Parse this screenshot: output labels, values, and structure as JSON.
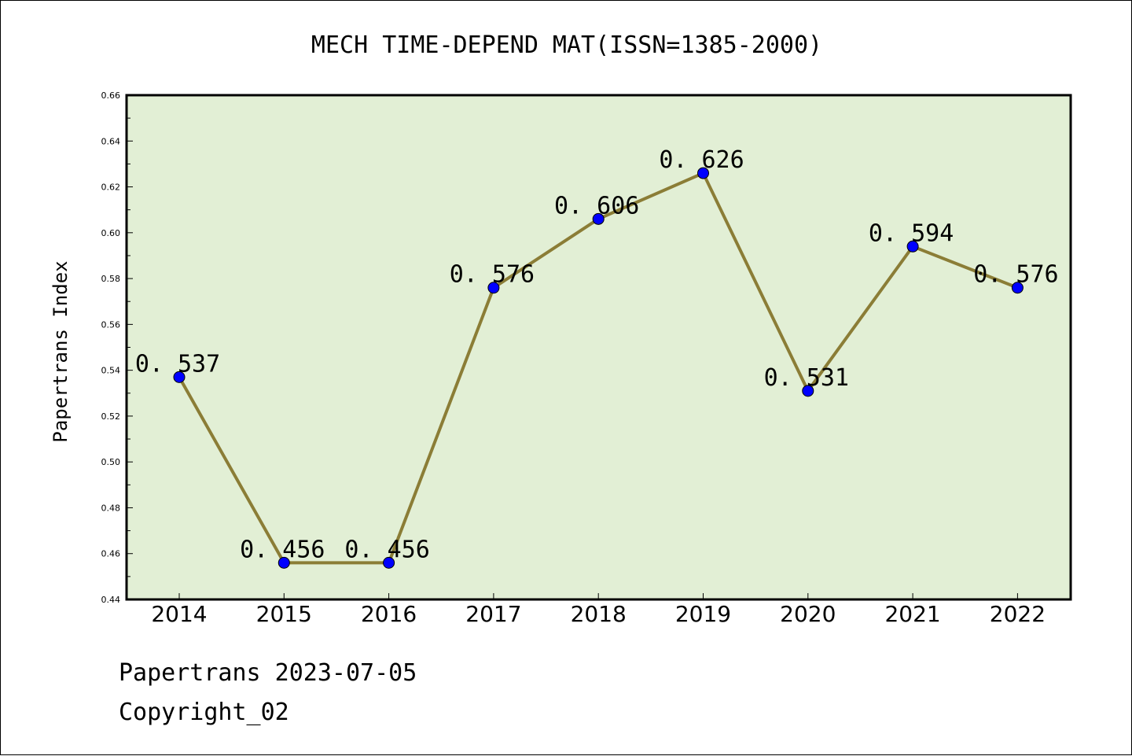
{
  "chart_data": {
    "type": "line",
    "title": "MECH TIME-DEPEND MAT(ISSN=1385-2000)",
    "xlabel": "",
    "ylabel": "Papertrans Index",
    "categories": [
      "2014",
      "2015",
      "2016",
      "2017",
      "2018",
      "2019",
      "2020",
      "2021",
      "2022"
    ],
    "series": [
      {
        "values": [
          0.537,
          0.456,
          0.456,
          0.576,
          0.606,
          0.626,
          0.531,
          0.594,
          0.576
        ]
      }
    ],
    "data_labels": [
      "0.537",
      "0.456",
      "0.456",
      "0.576",
      "0.606",
      "0.626",
      "0.531",
      "0.594",
      "0.576"
    ],
    "ylim": [
      0.44,
      0.66
    ],
    "yticks": [
      "0.44",
      "0.46",
      "0.48",
      "0.50",
      "0.52",
      "0.54",
      "0.56",
      "0.58",
      "0.60",
      "0.62",
      "0.64",
      "0.66"
    ],
    "grid": false,
    "colors": {
      "plot_background": "#e2efd5",
      "line": "#8b7d36",
      "marker": "#0000ff"
    }
  },
  "footer": {
    "source": "Papertrans 2023-07-05",
    "copyright": "Copyright_02"
  }
}
